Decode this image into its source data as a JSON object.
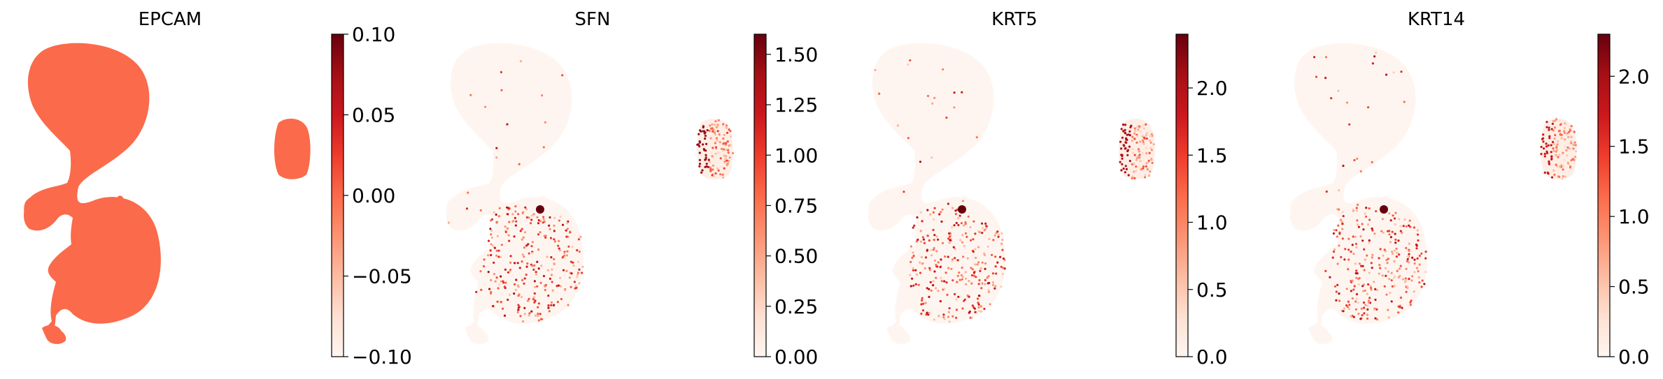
{
  "chart_data": [
    {
      "type": "scatter",
      "title": "EPCAM",
      "colormap": "Reds",
      "colorbar": {
        "min": -0.1,
        "max": 0.1,
        "ticks": [
          "0.10",
          "0.05",
          "0.00",
          "−0.05",
          "−0.10"
        ],
        "tick_values": [
          0.1,
          0.05,
          0.0,
          -0.05,
          -0.1
        ]
      },
      "expression": {
        "main_mass": 0.0,
        "side_cluster": 0.0,
        "sparse_high": 0.0
      },
      "uniform_color": "#fb6a4a"
    },
    {
      "type": "scatter",
      "title": "SFN",
      "colormap": "Reds",
      "colorbar": {
        "min": 0.0,
        "max": 1.6,
        "ticks": [
          "1.50",
          "1.25",
          "1.00",
          "0.75",
          "0.50",
          "0.25",
          "0.00"
        ],
        "tick_values": [
          1.5,
          1.25,
          1.0,
          0.75,
          0.5,
          0.25,
          0.0
        ]
      },
      "expression": {
        "main_mass": 0.0,
        "side_cluster": 0.9,
        "sparse_high": 1.2
      }
    },
    {
      "type": "scatter",
      "title": "KRT5",
      "colormap": "Reds",
      "colorbar": {
        "min": 0.0,
        "max": 2.4,
        "ticks": [
          "2.0",
          "1.5",
          "1.0",
          "0.5",
          "0.0"
        ],
        "tick_values": [
          2.0,
          1.5,
          1.0,
          0.5,
          0.0
        ]
      },
      "expression": {
        "main_mass": 0.0,
        "side_cluster": 1.3,
        "sparse_high": 1.8
      }
    },
    {
      "type": "scatter",
      "title": "KRT14",
      "colormap": "Reds",
      "colorbar": {
        "min": 0.0,
        "max": 2.3,
        "ticks": [
          "2.0",
          "1.5",
          "1.0",
          "0.5",
          "0.0"
        ],
        "tick_values": [
          2.0,
          1.5,
          1.0,
          0.5,
          0.0
        ]
      },
      "expression": {
        "main_mass": 0.0,
        "side_cluster": 1.1,
        "sparse_high": 1.7
      }
    }
  ],
  "colors": {
    "reds_stops": [
      "#fff5f0",
      "#fee0d2",
      "#fcbba1",
      "#fc9272",
      "#fb6a4a",
      "#ef3b2c",
      "#cb181d",
      "#a50f15",
      "#67000d"
    ],
    "background": "#ffffff",
    "text": "#000000"
  }
}
